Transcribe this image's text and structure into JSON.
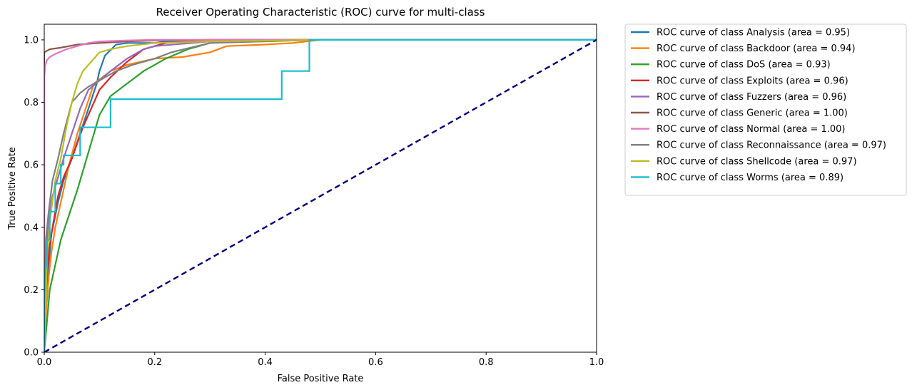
{
  "chart_data": {
    "type": "line",
    "title": "Receiver Operating Characteristic (ROC) curve for multi-class",
    "xlabel": "False Positive Rate",
    "ylabel": "True Positive Rate",
    "xlim": [
      0,
      1.0
    ],
    "ylim": [
      0,
      1.05
    ],
    "xticks": [
      0.0,
      0.2,
      0.4,
      0.6,
      0.8,
      1.0
    ],
    "xtick_labels": [
      "0.0",
      "0.2",
      "0.4",
      "0.6",
      "0.8",
      "1.0"
    ],
    "yticks": [
      0.0,
      0.2,
      0.4,
      0.6,
      0.8,
      1.0
    ],
    "ytick_labels": [
      "0.0",
      "0.2",
      "0.4",
      "0.6",
      "0.8",
      "1.0"
    ],
    "grid": false,
    "legend_position": "outside-top-right",
    "series": [
      {
        "name": "ROC curve of class Analysis (area = 0.95)",
        "color": "#1f77b4",
        "x": [
          0,
          0.003,
          0.008,
          0.013,
          0.018,
          0.025,
          0.035,
          0.05,
          0.065,
          0.08,
          0.095,
          0.1,
          0.11,
          0.13,
          0.15,
          0.18,
          0.2,
          0.22,
          0.3,
          0.5,
          1.0
        ],
        "y": [
          0,
          0.15,
          0.28,
          0.38,
          0.42,
          0.48,
          0.55,
          0.62,
          0.7,
          0.78,
          0.86,
          0.9,
          0.95,
          0.985,
          0.99,
          0.99,
          0.99,
          0.995,
          1.0,
          1.0,
          1.0
        ]
      },
      {
        "name": "ROC curve of class Backdoor (area = 0.94)",
        "color": "#ff7f0e",
        "x": [
          0,
          0.003,
          0.008,
          0.013,
          0.02,
          0.03,
          0.045,
          0.06,
          0.075,
          0.09,
          0.12,
          0.15,
          0.2,
          0.25,
          0.3,
          0.33,
          0.4,
          0.45,
          0.5,
          1.0
        ],
        "y": [
          0,
          0.12,
          0.24,
          0.32,
          0.4,
          0.48,
          0.6,
          0.7,
          0.78,
          0.86,
          0.9,
          0.92,
          0.94,
          0.945,
          0.96,
          0.98,
          0.985,
          0.99,
          1.0,
          1.0
        ]
      },
      {
        "name": "ROC curve of class DoS (area = 0.93)",
        "color": "#2ca02c",
        "x": [
          0,
          0.005,
          0.01,
          0.02,
          0.03,
          0.045,
          0.06,
          0.07,
          0.08,
          0.09,
          0.1,
          0.12,
          0.15,
          0.18,
          0.22,
          0.26,
          0.3,
          0.35,
          0.5,
          1.0
        ],
        "y": [
          0,
          0.1,
          0.2,
          0.28,
          0.36,
          0.44,
          0.52,
          0.58,
          0.64,
          0.7,
          0.76,
          0.82,
          0.86,
          0.9,
          0.94,
          0.97,
          0.99,
          0.995,
          1.0,
          1.0
        ]
      },
      {
        "name": "ROC curve of class Exploits (area = 0.96)",
        "color": "#d62728",
        "x": [
          0,
          0.003,
          0.008,
          0.015,
          0.025,
          0.035,
          0.05,
          0.07,
          0.09,
          0.1,
          0.12,
          0.15,
          0.18,
          0.22,
          0.3,
          0.5,
          1.0
        ],
        "y": [
          0,
          0.2,
          0.32,
          0.4,
          0.5,
          0.56,
          0.62,
          0.72,
          0.8,
          0.84,
          0.88,
          0.93,
          0.97,
          0.99,
          1.0,
          1.0,
          1.0
        ]
      },
      {
        "name": "ROC curve of class Fuzzers (area = 0.96)",
        "color": "#9467bd",
        "x": [
          0,
          0.003,
          0.008,
          0.015,
          0.025,
          0.035,
          0.05,
          0.065,
          0.08,
          0.1,
          0.12,
          0.15,
          0.18,
          0.2,
          0.3,
          0.5,
          1.0
        ],
        "y": [
          0,
          0.3,
          0.42,
          0.5,
          0.56,
          0.62,
          0.7,
          0.78,
          0.84,
          0.87,
          0.9,
          0.94,
          0.97,
          0.98,
          0.995,
          1.0,
          1.0
        ]
      },
      {
        "name": "ROC curve of class Generic (area = 1.00)",
        "color": "#8c564b",
        "x": [
          0,
          0.0,
          0.01,
          0.03,
          0.06,
          0.1,
          0.15,
          0.2,
          0.3,
          1.0
        ],
        "y": [
          0,
          0.96,
          0.97,
          0.975,
          0.985,
          0.99,
          0.995,
          0.998,
          1.0,
          1.0
        ]
      },
      {
        "name": "ROC curve of class Normal (area = 1.00)",
        "color": "#e377c2",
        "x": [
          0,
          0.0,
          0.002,
          0.005,
          0.01,
          0.02,
          0.04,
          0.06,
          0.08,
          0.1,
          0.15,
          0.2,
          0.3,
          1.0
        ],
        "y": [
          0,
          0.88,
          0.92,
          0.935,
          0.945,
          0.955,
          0.97,
          0.98,
          0.99,
          0.995,
          0.998,
          1.0,
          1.0,
          1.0
        ]
      },
      {
        "name": "ROC curve of class Reconnaissance (area = 0.97)",
        "color": "#7f7f7f",
        "x": [
          0,
          0.003,
          0.008,
          0.015,
          0.025,
          0.035,
          0.05,
          0.065,
          0.08,
          0.1,
          0.13,
          0.16,
          0.2,
          0.23,
          0.3,
          0.5,
          1.0
        ],
        "y": [
          0,
          0.36,
          0.45,
          0.55,
          0.62,
          0.7,
          0.8,
          0.83,
          0.85,
          0.87,
          0.9,
          0.92,
          0.94,
          0.96,
          0.99,
          1.0,
          1.0
        ]
      },
      {
        "name": "ROC curve of class Shellcode (area = 0.97)",
        "color": "#bcbd22",
        "x": [
          0,
          0.005,
          0.01,
          0.02,
          0.03,
          0.04,
          0.05,
          0.06,
          0.07,
          0.08,
          0.09,
          0.1,
          0.12,
          0.15,
          0.2,
          0.3,
          0.5
        ],
        "y": [
          0,
          0.3,
          0.42,
          0.55,
          0.62,
          0.72,
          0.8,
          0.86,
          0.9,
          0.92,
          0.94,
          0.96,
          0.97,
          0.98,
          0.99,
          0.995,
          1.0
        ]
      },
      {
        "name": "ROC curve of class Worms (area = 0.89)",
        "color": "#17becf",
        "x": [
          0.0,
          0.0,
          0.005,
          0.005,
          0.01,
          0.01,
          0.02,
          0.02,
          0.03,
          0.03,
          0.035,
          0.035,
          0.065,
          0.065,
          0.08,
          0.08,
          0.12,
          0.12,
          0.43,
          0.43,
          0.48,
          0.48,
          1.0
        ],
        "y": [
          0.0,
          0.27,
          0.27,
          0.36,
          0.36,
          0.45,
          0.45,
          0.54,
          0.54,
          0.6,
          0.6,
          0.63,
          0.63,
          0.72,
          0.72,
          0.72,
          0.72,
          0.81,
          0.81,
          0.9,
          0.9,
          1.0,
          1.0
        ]
      }
    ],
    "reference_line": {
      "color": "#000080",
      "style": "dashed",
      "x": [
        0,
        1
      ],
      "y": [
        0,
        1
      ]
    }
  }
}
